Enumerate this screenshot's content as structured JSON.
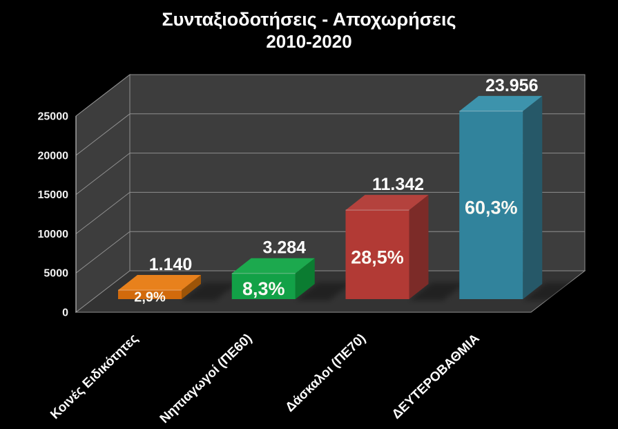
{
  "title": {
    "line1": "Συνταξιοδοτήσεις - Αποχωρήσεις",
    "line2": "2010-2020"
  },
  "chart_data": {
    "type": "bar",
    "projection": "3d",
    "title": "Συνταξιοδοτήσεις - Αποχωρήσεις",
    "subtitle": "2010-2020",
    "categories": [
      "Κοινές Ειδικότητες",
      "Νηπιαγωγοί (ΠΕ60)",
      "Δάσκαλοι (ΠΕ70)",
      "ΔΕΥΤΕΡΟΒΑΘΜΙΑ"
    ],
    "series": [
      {
        "name": "Συνταξιοδοτήσεις - Αποχωρήσεις 2010-2020",
        "values": [
          1140,
          3284,
          11342,
          23956
        ]
      }
    ],
    "value_labels": [
      "1.140",
      "3.284",
      "11.342",
      "23.956"
    ],
    "percent_labels": [
      "2,9%",
      "8,3%",
      "28,5%",
      "60,3%"
    ],
    "bar_colors": [
      {
        "top": "#e8811c",
        "front": "#d26a0c",
        "side": "#9c5408"
      },
      {
        "top": "#1ca94e",
        "front": "#12a147",
        "side": "#0b7c31"
      },
      {
        "top": "#b4423d",
        "front": "#b23a35",
        "side": "#7c2b28"
      },
      {
        "top": "#3d93ac",
        "front": "#31839c",
        "side": "#265868"
      }
    ],
    "xlabel": "",
    "ylabel": "",
    "ylim": [
      0,
      25000
    ],
    "yticks": [
      0,
      5000,
      10000,
      15000,
      20000,
      25000
    ],
    "ytick_labels": [
      "0",
      "5000",
      "10000",
      "15000",
      "20000",
      "25000"
    ],
    "grid": true,
    "legend": false,
    "colors": {
      "background": "#000000",
      "wall": "#3d3d3d",
      "floor": "#333333",
      "gridline": "#8f8f8f",
      "axis_line": "#b5b5b5",
      "text": "#ffffff"
    }
  }
}
